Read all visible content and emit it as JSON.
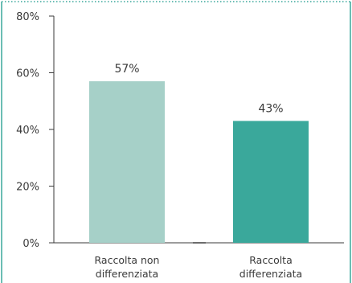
{
  "chart_data": {
    "type": "bar",
    "categories": [
      [
        "Raccolta non",
        "differenziata"
      ],
      [
        "Raccolta",
        "differenziata"
      ]
    ],
    "values": [
      57,
      43
    ],
    "data_labels": [
      "57%",
      "43%"
    ],
    "colors": [
      "#a6d0c8",
      "#3aa89b"
    ],
    "ylim": [
      0,
      80
    ],
    "yticks": [
      0,
      20,
      40,
      60,
      80
    ],
    "ytick_labels": [
      "0%",
      "20%",
      "40%",
      "60%",
      "80%"
    ],
    "frame_color": "#3aa89b",
    "axis_color": "#3a3a3a",
    "grid": false
  }
}
